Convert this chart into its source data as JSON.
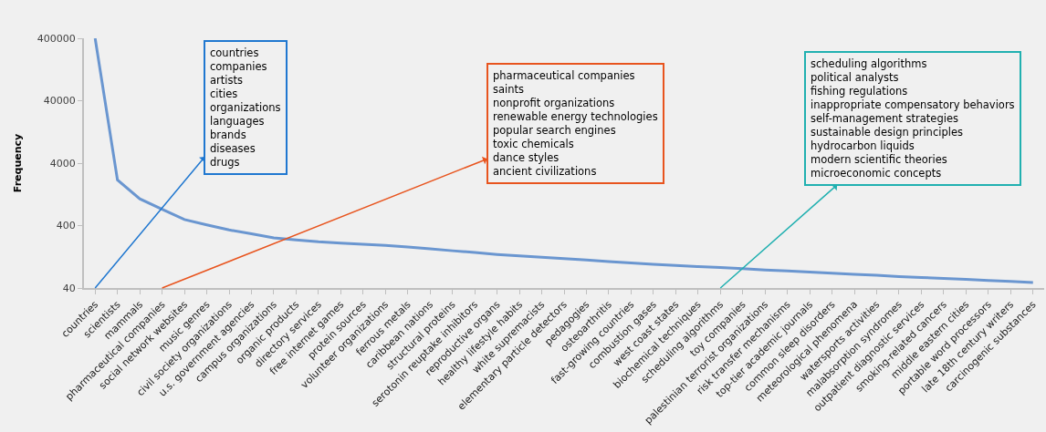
{
  "chart_data": {
    "type": "line",
    "ylabel": "Frequency",
    "log": "y",
    "ylim": [
      40,
      400000
    ],
    "yticks": [
      40,
      400,
      4000,
      40000,
      400000
    ],
    "grid": false,
    "marker": "none",
    "line_style": "solid",
    "categories": [
      "countries",
      "scientists",
      "mammals",
      "pharmaceutical companies",
      "social network websites",
      "music genres",
      "civil society organizations",
      "u.s. government agencies",
      "campus organizations",
      "organic products",
      "directory services",
      "free internet games",
      "protein sources",
      "volunteer organizations",
      "ferrous metals",
      "caribbean nations",
      "structural proteins",
      "serotonin reuptake inhibitors",
      "reproductive organs",
      "healthy lifestyle habits",
      "white supremacists",
      "elementary particle detectors",
      "pedagogies",
      "osteoarthritis",
      "fast-growing countries",
      "combustion gases",
      "west coast states",
      "biochemical techniques",
      "scheduling algorithms",
      "toy companies",
      "palestinian terrorist organizations",
      "risk transfer mechanisms",
      "top-tier academic journals",
      "common sleep disorders",
      "meteorological phenomena",
      "watersports activities",
      "malabsorption syndromes",
      "outpatient diagnostic services",
      "smoking-related cancers",
      "middle eastern cities",
      "portable word processors",
      "late 18th century writers",
      "carcinogenic substances"
    ],
    "series": [
      {
        "color": "#6a96d0",
        "values": [
          400000,
          2150,
          1070,
          730,
          500,
          410,
          340,
          295,
          255,
          235,
          220,
          210,
          200,
          192,
          182,
          170,
          158,
          148,
          138,
          131,
          124,
          118,
          112,
          106,
          101,
          96,
          92,
          88,
          85,
          82,
          78,
          75,
          72,
          69,
          66,
          64,
          61,
          59,
          57,
          55,
          53,
          51,
          49
        ]
      }
    ],
    "annotations": [
      "countries\ncompanies\nartists\ncities\norganizations\nlanguages\nbrands\ndiseases\ndrugs",
      "pharmaceutical companies\nsaints\nnonprofit organizations\nrenewable energy technologies\npopular search engines\ntoxic chemicals\ndance styles\nancient civilizations",
      "scheduling algorithms\npolitical analysts\nfishing regulations\ninappropriate compensatory behaviors\nself-management strategies\nsustainable design principles\nhydrocarbon liquids\nmodern scientific theories\nmicroeconomic concepts"
    ]
  }
}
